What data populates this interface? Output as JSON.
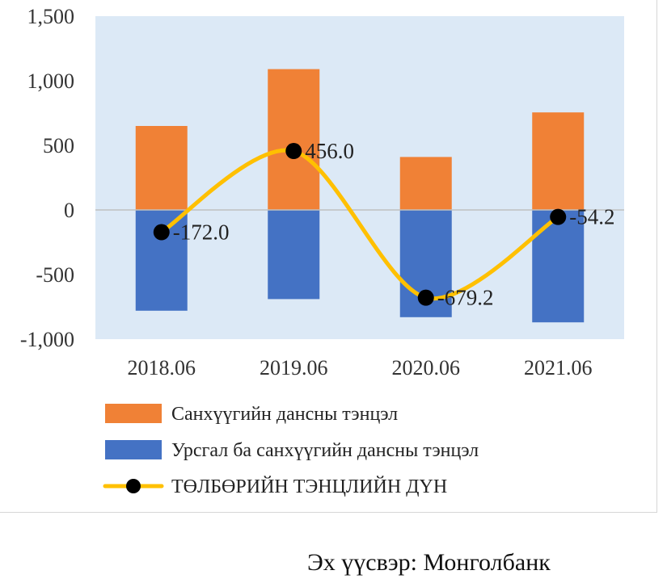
{
  "chart_data": {
    "type": "bar",
    "categories": [
      "2018.06",
      "2019.06",
      "2020.06",
      "2021.06"
    ],
    "series": [
      {
        "name": "Санхүүгийн дансны тэнцэл",
        "kind": "bar",
        "color": "#f08136",
        "values": [
          650,
          1090,
          410,
          755
        ]
      },
      {
        "name": "Урсгал ба санхүүгийн дансны тэнцэл",
        "kind": "bar",
        "color": "#4472c4",
        "values": [
          -780,
          -690,
          -830,
          -870
        ]
      },
      {
        "name": "ТӨЛБӨРИЙН ТЭНЦЛИЙН ДҮН",
        "kind": "line",
        "color": "#ffc000",
        "marker_color": "#000000",
        "values": [
          -172.0,
          456.0,
          -679.2,
          -54.2
        ],
        "labels": [
          "-172.0",
          "456.0",
          "-679.2",
          "-54.2"
        ]
      }
    ],
    "ylim": [
      -1000,
      1500
    ],
    "yticks": [
      -1000,
      -500,
      0,
      500,
      1000,
      1500
    ],
    "ytick_labels": [
      "-1,000",
      "-500",
      "0",
      "500",
      "1,000",
      "1,500"
    ],
    "plot_background": "#dce9f6",
    "legend_position": "bottom"
  },
  "source": "Эх үүсвэр: Монголбанк"
}
